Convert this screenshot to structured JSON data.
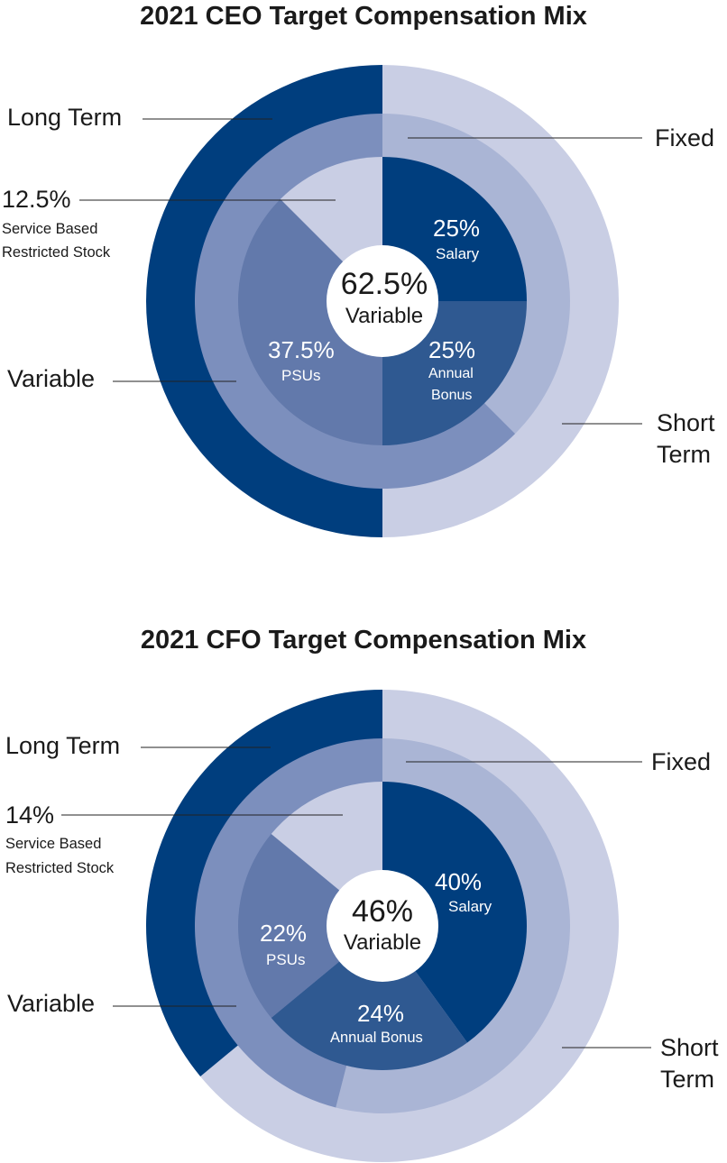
{
  "chart_data": [
    {
      "type": "pie",
      "title": "2021 CEO Target Compensation Mix",
      "center": {
        "value": "62.5%",
        "label": "Variable"
      },
      "inner_ring": [
        {
          "name": "Salary",
          "value": 25,
          "label": "25%"
        },
        {
          "name": "Annual Bonus",
          "value": 25,
          "label": "25%"
        },
        {
          "name": "PSUs",
          "value": 37.5,
          "label": "37.5%"
        },
        {
          "name": "Service Based Restricted Stock",
          "value": 12.5,
          "label": "12.5%"
        }
      ],
      "middle_ring": [
        {
          "name": "Fixed",
          "value": 37.5
        },
        {
          "name": "Variable",
          "value": 62.5
        }
      ],
      "outer_ring": [
        {
          "name": "Short Term",
          "value": 50
        },
        {
          "name": "Long Term",
          "value": 50
        }
      ],
      "callouts": {
        "long_term": "Long Term",
        "fixed": "Fixed",
        "restricted_pct": "12.5%",
        "restricted_line1": "Service Based",
        "restricted_line2": "Restricted Stock",
        "variable": "Variable",
        "short_line1": "Short",
        "short_line2": "Term"
      },
      "slice_labels": {
        "salary_pct": "25%",
        "salary_name": "Salary",
        "bonus_pct": "25%",
        "bonus_name_1": "Annual",
        "bonus_name_2": "Bonus",
        "psu_pct": "37.5%",
        "psu_name": "PSUs"
      }
    },
    {
      "type": "pie",
      "title": "2021 CFO Target Compensation Mix",
      "center": {
        "value": "46%",
        "label": "Variable"
      },
      "inner_ring": [
        {
          "name": "Salary",
          "value": 40,
          "label": "40%"
        },
        {
          "name": "Annual Bonus",
          "value": 24,
          "label": "24%"
        },
        {
          "name": "PSUs",
          "value": 22,
          "label": "22%"
        },
        {
          "name": "Service Based Restricted Stock",
          "value": 14,
          "label": "14%"
        }
      ],
      "middle_ring": [
        {
          "name": "Fixed",
          "value": 54
        },
        {
          "name": "Variable",
          "value": 46
        }
      ],
      "outer_ring": [
        {
          "name": "Short Term",
          "value": 64
        },
        {
          "name": "Long Term",
          "value": 36
        }
      ],
      "callouts": {
        "long_term": "Long Term",
        "fixed": "Fixed",
        "restricted_pct": "14%",
        "restricted_line1": "Service Based",
        "restricted_line2": "Restricted Stock",
        "variable": "Variable",
        "short_line1": "Short",
        "short_line2": "Term"
      },
      "slice_labels": {
        "salary_pct": "40%",
        "salary_name": "Salary",
        "bonus_pct": "24%",
        "bonus_name": "Annual Bonus",
        "psu_pct": "22%",
        "psu_name": "PSUs"
      }
    }
  ],
  "colors": {
    "dark_navy": "#003e7e",
    "light_lavender": "#c9cee4",
    "mid_lavender": "#aab5d5",
    "mid_blue": "#7c8fbd",
    "slate_blue": "#6279ab",
    "bonus_blue": "#2f5991",
    "white": "#ffffff"
  }
}
